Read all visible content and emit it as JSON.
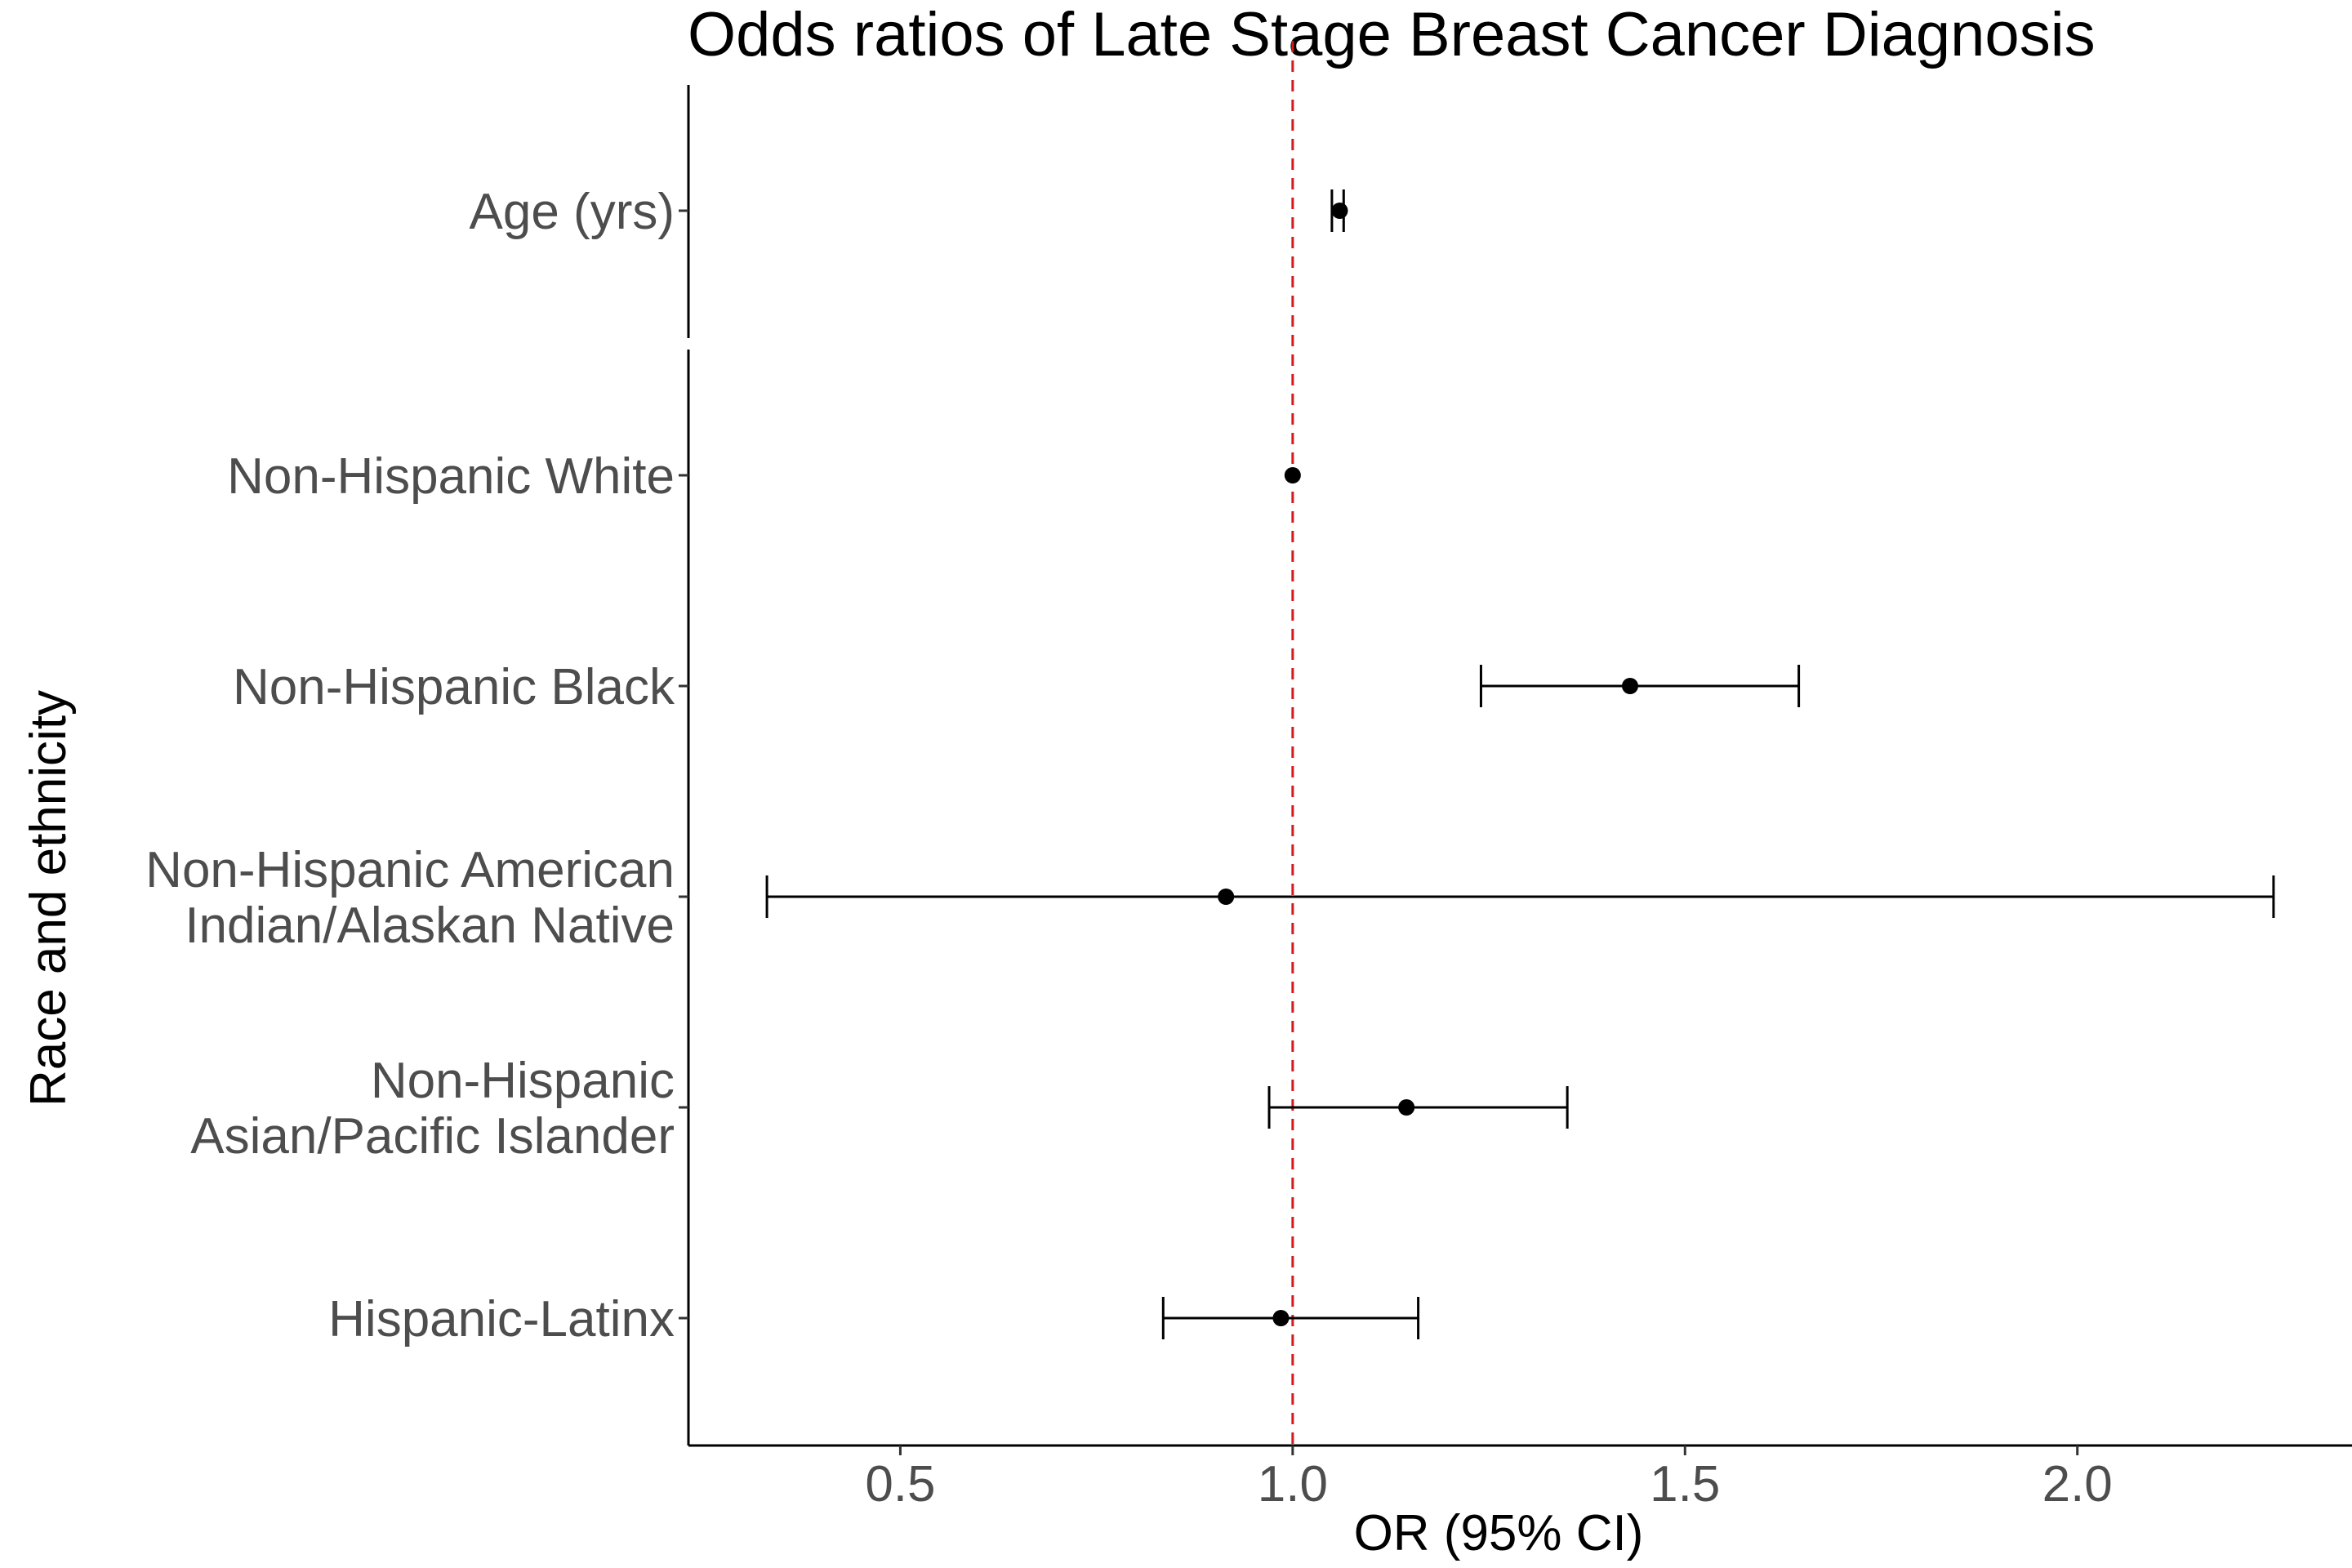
{
  "chart_data": {
    "type": "forest",
    "title": "Odds ratios of Late Stage Breast Cancer Diagnosis",
    "xlabel": "OR (95% CI)",
    "ylabel": "Race and ethnicity",
    "xlim": [
      0.23,
      2.35
    ],
    "xticks": [
      0.5,
      1.0,
      1.5,
      2.0
    ],
    "xtick_labels": [
      "0.5",
      "1.0",
      "1.5",
      "2.0"
    ],
    "reference_line": {
      "x": 1.0,
      "color": "#d7191c",
      "style": "dashed"
    },
    "grid": false,
    "panels": [
      {
        "name": "age",
        "rows": [
          {
            "label": [
              "Age (yrs)"
            ],
            "or": 1.06,
            "lower": 1.05,
            "upper": 1.065
          }
        ]
      },
      {
        "name": "race",
        "rows": [
          {
            "label": [
              "Non-Hispanic White"
            ],
            "or": 1.0,
            "lower": 1.0,
            "upper": 1.0
          },
          {
            "label": [
              "Non-Hispanic Black"
            ],
            "or": 1.43,
            "lower": 1.24,
            "upper": 1.645
          },
          {
            "label": [
              "Non-Hispanic American",
              "Indian/Alaskan Native"
            ],
            "or": 0.915,
            "lower": 0.33,
            "upper": 2.25
          },
          {
            "label": [
              "Non-Hispanic",
              "Asian/Pacific Islander"
            ],
            "or": 1.145,
            "lower": 0.97,
            "upper": 1.35
          },
          {
            "label": [
              "Hispanic-Latinx"
            ],
            "or": 0.985,
            "lower": 0.835,
            "upper": 1.16
          }
        ]
      }
    ],
    "colors": {
      "point": "#000000",
      "line": "#000000",
      "axis": "#000000",
      "tick_label": "#4d4d4d"
    }
  }
}
